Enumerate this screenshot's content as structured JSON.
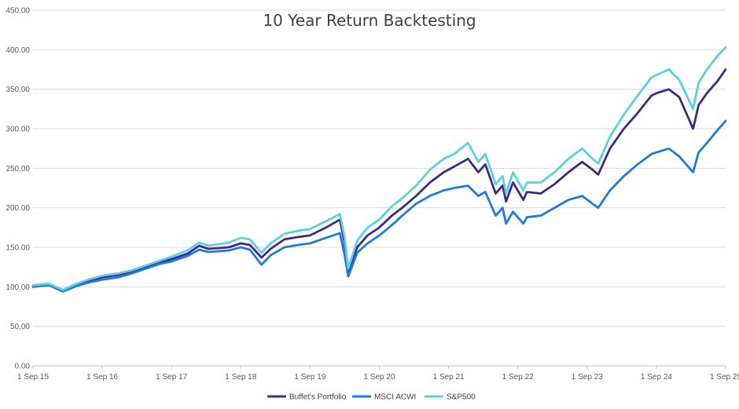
{
  "chart_data": {
    "type": "line",
    "title": "10 Year Return Backtesting",
    "xlabel": "",
    "ylabel": "",
    "ylim": [
      0,
      450
    ],
    "y_ticks": [
      "0.00",
      "50.00",
      "100.00",
      "150.00",
      "200.00",
      "250.00",
      "300.00",
      "350.00",
      "400.00",
      "450.00"
    ],
    "x_ticks": [
      "1 Sep 15",
      "1 Sep 16",
      "1 Sep 17",
      "1 Sep 18",
      "1 Sep 19",
      "1 Sep 20",
      "1 Sep 21",
      "1 Sep 22",
      "1 Sep 23",
      "1 Sep 24",
      "1 Sep 25"
    ],
    "grid": true,
    "legend_position": "bottom",
    "x": [
      2015.67,
      2015.9,
      2016.1,
      2016.3,
      2016.5,
      2016.67,
      2016.9,
      2017.1,
      2017.3,
      2017.5,
      2017.67,
      2017.9,
      2018.07,
      2018.2,
      2018.5,
      2018.67,
      2018.8,
      2018.97,
      2019.1,
      2019.3,
      2019.5,
      2019.67,
      2019.9,
      2020.1,
      2020.17,
      2020.22,
      2020.35,
      2020.5,
      2020.67,
      2020.85,
      2021.0,
      2021.2,
      2021.4,
      2021.6,
      2021.75,
      2021.95,
      2022.1,
      2022.2,
      2022.35,
      2022.45,
      2022.5,
      2022.6,
      2022.75,
      2022.8,
      2023.0,
      2023.2,
      2023.4,
      2023.6,
      2023.75,
      2023.83,
      2024.0,
      2024.2,
      2024.4,
      2024.6,
      2024.67,
      2024.85,
      2025.0,
      2025.2,
      2025.28,
      2025.4,
      2025.55,
      2025.67
    ],
    "series": [
      {
        "name": "Buffet's Portfolio",
        "color": "#3d2a84",
        "values": [
          100,
          103,
          95,
          103,
          108,
          112,
          115,
          119,
          125,
          131,
          135,
          142,
          152,
          148,
          150,
          155,
          153,
          137,
          148,
          160,
          163,
          165,
          175,
          185,
          155,
          118,
          150,
          165,
          175,
          190,
          200,
          215,
          232,
          245,
          252,
          262,
          245,
          255,
          218,
          228,
          208,
          232,
          210,
          220,
          218,
          230,
          245,
          258,
          248,
          242,
          275,
          300,
          320,
          342,
          345,
          350,
          340,
          300,
          330,
          345,
          360,
          375
        ]
      },
      {
        "name": "MSCI ACWI",
        "color": "#1f7ae0",
        "values": [
          100,
          102,
          94,
          101,
          106,
          109,
          112,
          117,
          123,
          129,
          132,
          139,
          147,
          144,
          146,
          150,
          147,
          128,
          140,
          150,
          153,
          155,
          162,
          168,
          140,
          113,
          143,
          155,
          165,
          178,
          190,
          205,
          215,
          222,
          225,
          228,
          215,
          220,
          190,
          200,
          180,
          195,
          180,
          188,
          190,
          200,
          210,
          215,
          205,
          200,
          222,
          240,
          255,
          268,
          270,
          275,
          265,
          245,
          270,
          282,
          298,
          310
        ]
      },
      {
        "name": "S&P500",
        "color": "#5ccfe0",
        "values": [
          102,
          104,
          96,
          104,
          110,
          114,
          117,
          121,
          127,
          133,
          138,
          146,
          156,
          152,
          156,
          162,
          160,
          143,
          155,
          167,
          171,
          173,
          183,
          192,
          162,
          123,
          158,
          175,
          185,
          202,
          212,
          228,
          248,
          262,
          268,
          282,
          258,
          268,
          230,
          240,
          218,
          245,
          222,
          232,
          232,
          245,
          262,
          275,
          262,
          256,
          290,
          318,
          342,
          365,
          368,
          375,
          362,
          325,
          358,
          375,
          392,
          403
        ]
      }
    ]
  }
}
